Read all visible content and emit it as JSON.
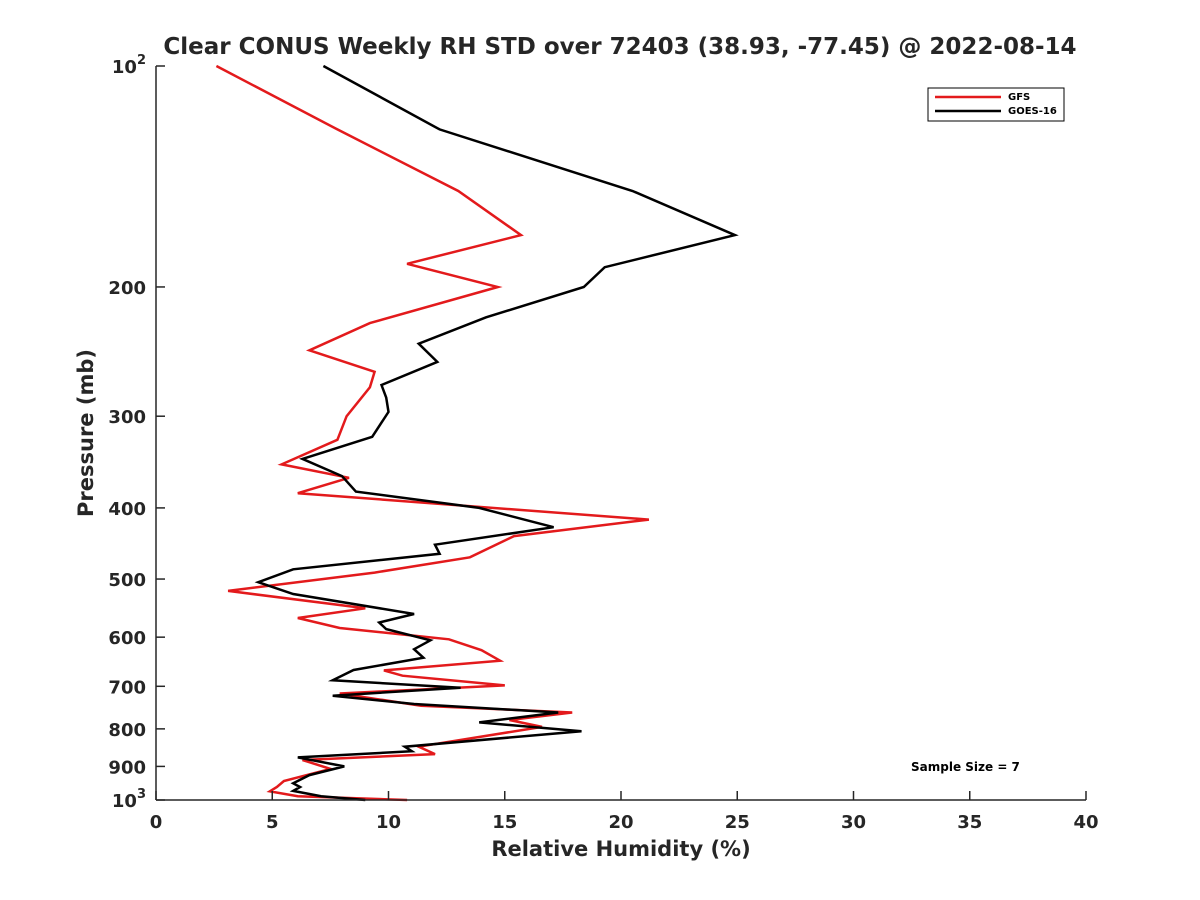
{
  "chart_data": {
    "type": "line",
    "title": "Clear CONUS Weekly RH STD over 72403 (38.93, -77.45) @ 2022-08-14",
    "xlabel": "Relative Humidity (%)",
    "ylabel": "Pressure (mb)",
    "xlim": [
      0,
      40
    ],
    "ylim": [
      100,
      1000
    ],
    "y_scale": "log",
    "y_reversed": true,
    "x_ticks": [
      "0",
      "5",
      "10",
      "15",
      "20",
      "25",
      "30",
      "35",
      "40"
    ],
    "y_ticks": [
      {
        "value": 100,
        "base": "10",
        "exp": "2"
      },
      {
        "value": 200,
        "label": "200"
      },
      {
        "value": 300,
        "label": "300"
      },
      {
        "value": 400,
        "label": "400"
      },
      {
        "value": 500,
        "label": "500"
      },
      {
        "value": 600,
        "label": "600"
      },
      {
        "value": 700,
        "label": "700"
      },
      {
        "value": 800,
        "label": "800"
      },
      {
        "value": 900,
        "label": "900"
      },
      {
        "value": 1000,
        "base": "10",
        "exp": "3"
      }
    ],
    "legend_position": "top-right",
    "grid": false,
    "annotation": "Sample Size = 7",
    "series": [
      {
        "name": "GFS",
        "color": "#e31a1c",
        "points": [
          [
            2.6,
            100
          ],
          [
            7.8,
            122
          ],
          [
            13,
            148
          ],
          [
            15.7,
            170
          ],
          [
            10.8,
            186
          ],
          [
            14.7,
            200
          ],
          [
            9.2,
            224
          ],
          [
            6.6,
            244
          ],
          [
            9.4,
            261
          ],
          [
            9.2,
            274
          ],
          [
            8.2,
            300
          ],
          [
            7.8,
            323
          ],
          [
            5.4,
            349
          ],
          [
            8.3,
            364
          ],
          [
            6.1,
            382
          ],
          [
            21.2,
            415
          ],
          [
            15.4,
            437
          ],
          [
            13.5,
            467
          ],
          [
            9.4,
            490
          ],
          [
            3.1,
            519
          ],
          [
            9,
            548
          ],
          [
            6.1,
            565
          ],
          [
            7.9,
            583
          ],
          [
            12.6,
            604
          ],
          [
            14,
            625
          ],
          [
            14.8,
            646
          ],
          [
            9.8,
            666
          ],
          [
            10.6,
            677
          ],
          [
            15,
            698
          ],
          [
            7.9,
            716
          ],
          [
            11.4,
            744
          ],
          [
            17.9,
            760
          ],
          [
            15.2,
            778
          ],
          [
            16.6,
            795
          ],
          [
            11.3,
            846
          ],
          [
            12,
            866
          ],
          [
            6.3,
            882
          ],
          [
            7.5,
            907
          ],
          [
            5.5,
            942
          ],
          [
            5.2,
            960
          ],
          [
            4.9,
            973
          ],
          [
            6.1,
            988
          ],
          [
            10.8,
            1000
          ]
        ]
      },
      {
        "name": "GOES-16",
        "color": "#000000",
        "points": [
          [
            7.2,
            100
          ],
          [
            12.2,
            122
          ],
          [
            20.5,
            148
          ],
          [
            24.9,
            170
          ],
          [
            19.3,
            188
          ],
          [
            18.4,
            200
          ],
          [
            14.2,
            220
          ],
          [
            11.3,
            239
          ],
          [
            12.1,
            253
          ],
          [
            9.7,
            272
          ],
          [
            9.9,
            283
          ],
          [
            10,
            296
          ],
          [
            9.3,
            320
          ],
          [
            6.3,
            343
          ],
          [
            8,
            362
          ],
          [
            8.6,
            380
          ],
          [
            13.9,
            400
          ],
          [
            17.1,
            425
          ],
          [
            12,
            449
          ],
          [
            12.2,
            462
          ],
          [
            5.9,
            485
          ],
          [
            4.4,
            505
          ],
          [
            5.9,
            524
          ],
          [
            11.1,
            558
          ],
          [
            9.6,
            573
          ],
          [
            9.9,
            585
          ],
          [
            11.8,
            606
          ],
          [
            11.1,
            623
          ],
          [
            11.5,
            640
          ],
          [
            8.5,
            665
          ],
          [
            7.6,
            687
          ],
          [
            13.1,
            703
          ],
          [
            7.6,
            721
          ],
          [
            11.1,
            740
          ],
          [
            17.3,
            760
          ],
          [
            13.9,
            784
          ],
          [
            18.3,
            806
          ],
          [
            10.7,
            846
          ],
          [
            11,
            858
          ],
          [
            6.1,
            875
          ],
          [
            8.1,
            900
          ],
          [
            6.6,
            925
          ],
          [
            5.9,
            949
          ],
          [
            6.2,
            960
          ],
          [
            5.9,
            972
          ],
          [
            7.1,
            988
          ],
          [
            9,
            1000
          ]
        ]
      }
    ]
  }
}
